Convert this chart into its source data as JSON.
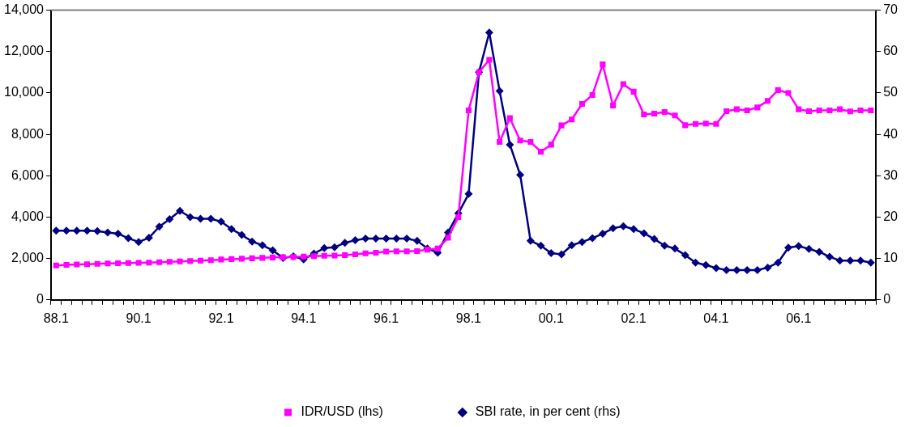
{
  "chart_data": {
    "type": "line",
    "categories": [
      "88.1",
      null,
      null,
      null,
      null,
      null,
      null,
      null,
      "90.1",
      null,
      null,
      null,
      null,
      null,
      null,
      null,
      "92.1",
      null,
      null,
      null,
      null,
      null,
      null,
      null,
      "94.1",
      null,
      null,
      null,
      null,
      null,
      null,
      null,
      "96.1",
      null,
      null,
      null,
      null,
      null,
      null,
      null,
      "98.1",
      null,
      null,
      null,
      null,
      null,
      null,
      null,
      "00.1",
      null,
      null,
      null,
      null,
      null,
      null,
      null,
      "02.1",
      null,
      null,
      null,
      null,
      null,
      null,
      null,
      "04.1",
      null,
      null,
      null,
      null,
      null,
      null,
      null,
      "06.1",
      null,
      null,
      null,
      null,
      null,
      null,
      null
    ],
    "series": [
      {
        "name": "IDR/USD (lhs)",
        "color": "#ff00ff",
        "marker": "square",
        "values": [
          1660,
          1690,
          1710,
          1720,
          1740,
          1760,
          1770,
          1780,
          1790,
          1800,
          1820,
          1840,
          1860,
          1880,
          1900,
          1920,
          1950,
          1970,
          1990,
          2010,
          2030,
          2050,
          2060,
          2070,
          2090,
          2110,
          2130,
          2140,
          2160,
          2200,
          2250,
          2280,
          2340,
          2350,
          2350,
          2360,
          2430,
          2480,
          3000,
          4000,
          9160,
          11000,
          11600,
          7630,
          8780,
          7700,
          7630,
          7160,
          7500,
          8430,
          8720,
          9470,
          9900,
          11380,
          9390,
          10430,
          10060,
          8960,
          9000,
          9080,
          8910,
          8440,
          8500,
          8520,
          8500,
          9120,
          9210,
          9160,
          9300,
          9620,
          10140,
          10000,
          9210,
          9120,
          9160,
          9160,
          9210,
          9110,
          9160,
          9160
        ]
      },
      {
        "name": "SBI rate, in per cent (rhs)",
        "color": "#000080",
        "marker": "diamond",
        "axis": "y2",
        "values": [
          16.7,
          16.7,
          16.7,
          16.7,
          16.6,
          16.3,
          16.0,
          14.9,
          14.0,
          15.0,
          17.7,
          19.5,
          21.5,
          20.0,
          19.6,
          19.6,
          18.9,
          17.1,
          15.7,
          14.1,
          13.2,
          12.0,
          10.1,
          10.5,
          9.8,
          11.2,
          12.5,
          12.7,
          13.8,
          14.4,
          14.8,
          14.8,
          14.8,
          14.8,
          14.8,
          14.3,
          12.4,
          11.4,
          16.3,
          20.9,
          25.6,
          55.0,
          64.6,
          50.5,
          37.5,
          30.2,
          14.3,
          13.1,
          11.3,
          11.0,
          13.2,
          14.0,
          14.9,
          16.0,
          17.3,
          17.8,
          17.1,
          16.1,
          14.7,
          13.1,
          12.4,
          10.8,
          9.0,
          8.4,
          7.7,
          7.2,
          7.2,
          7.2,
          7.2,
          7.8,
          9.0,
          12.6,
          13.0,
          12.3,
          11.6,
          10.4,
          9.5,
          9.5,
          9.5,
          9.0
        ]
      }
    ],
    "ylim": [
      0,
      14000
    ],
    "yticks": [
      0,
      {
        "value": 2000,
        "label": "2,000"
      },
      {
        "value": 4000,
        "label": "4,000"
      },
      {
        "value": 6000,
        "label": "6,000"
      },
      {
        "value": 8000,
        "label": "8,000"
      },
      {
        "value": 10000,
        "label": "10,000"
      },
      {
        "value": 12000,
        "label": "12,000"
      },
      {
        "value": 14000,
        "label": "14,000"
      }
    ],
    "y2lim": [
      0,
      70
    ],
    "y2ticks": [
      0,
      10,
      20,
      30,
      40,
      50,
      60,
      70
    ],
    "grid": false,
    "legend": "bottom",
    "line_style": "solid"
  }
}
